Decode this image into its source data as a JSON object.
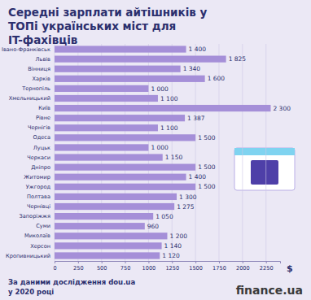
{
  "chart_data": {
    "type": "bar",
    "orientation": "horizontal",
    "title": "Середні зарплати айтішників у ТОПі українських міст для IT-фахівців",
    "categories": [
      "Івано-Франківськ",
      "Львів",
      "Вінниця",
      "Харків",
      "Тернопіль",
      "Хмельницький",
      "Київ",
      "Рівне",
      "Чернігів",
      "Одеса",
      "Луцьк",
      "Черкаси",
      "Дніпро",
      "Житомир",
      "Ужгород",
      "Полтава",
      "Чернівці",
      "Запоріжжя",
      "Суми",
      "Миколаїв",
      "Херсон",
      "Кропивницький"
    ],
    "values": [
      1400,
      1825,
      1340,
      1600,
      1000,
      1100,
      2300,
      1387,
      1100,
      1500,
      1000,
      1150,
      1500,
      1400,
      1500,
      1300,
      1275,
      1050,
      960,
      1200,
      1140,
      1120
    ],
    "value_labels": [
      "1 400",
      "1 825",
      "1 340",
      "1 600",
      "1 000",
      "1 100",
      "2 300",
      "1 387",
      "1 100",
      "1 500",
      "1 000",
      "1 150",
      "1 500",
      "1 400",
      "1 500",
      "1 300",
      "1 275",
      "1 050",
      "960",
      "1 200",
      "1 140",
      "1 120"
    ],
    "data_labels": true,
    "color": "#a58fd8",
    "xlabel": "$",
    "xlim": [
      0,
      2400
    ],
    "xticks": [
      0,
      250,
      500,
      750,
      1000,
      1250,
      1500,
      1750,
      2000,
      2250
    ],
    "grid": true,
    "source": [
      "За даними дослідження dou.ua",
      "у 2020 році"
    ],
    "brand": "finance.ua"
  }
}
